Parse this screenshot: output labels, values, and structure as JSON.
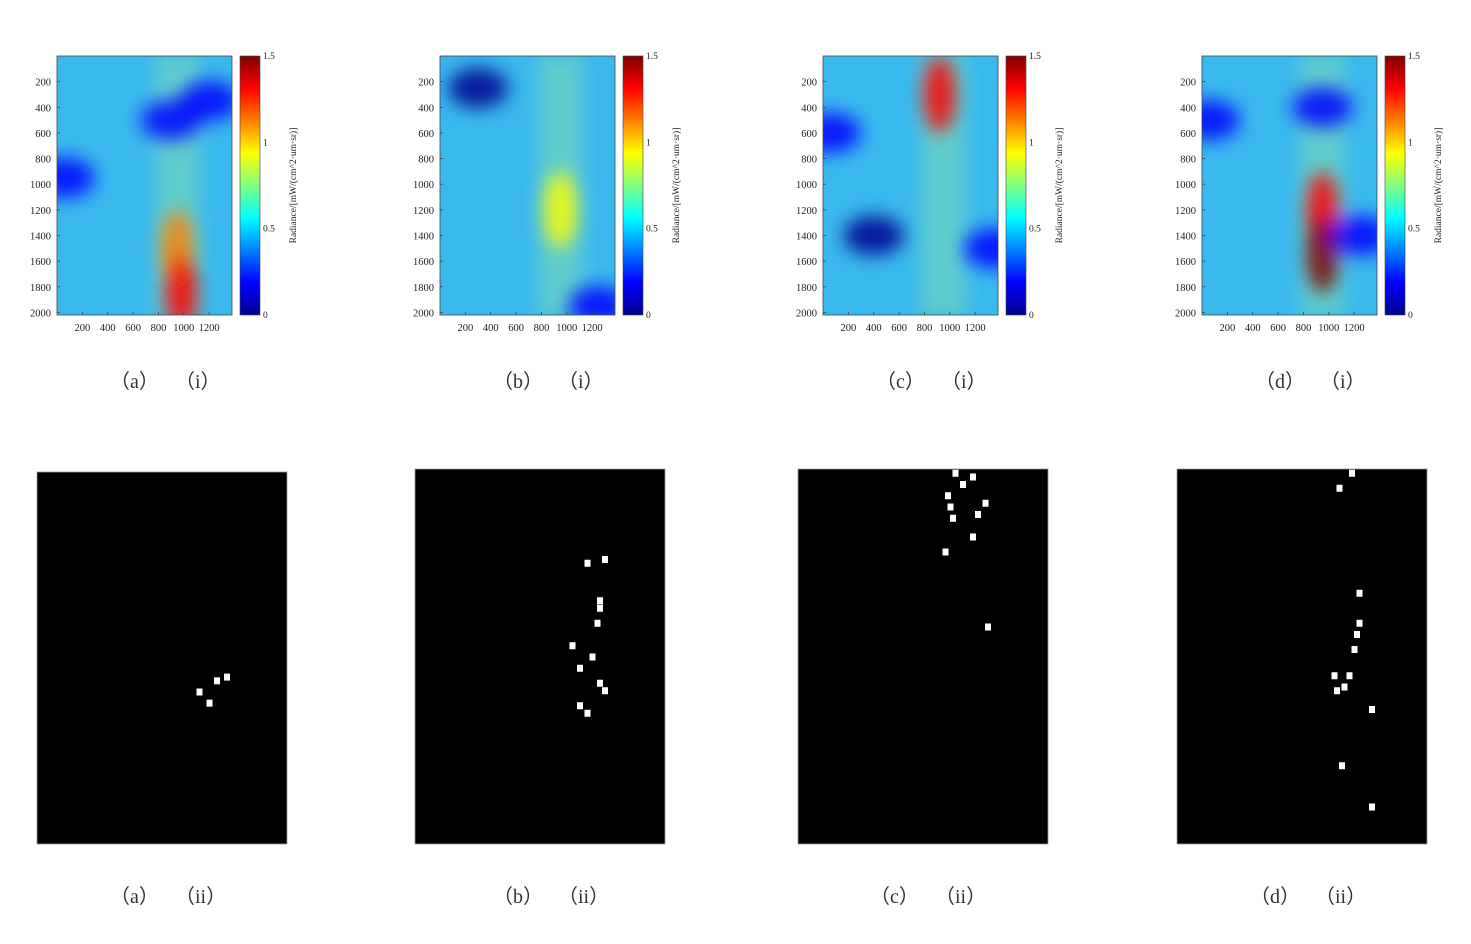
{
  "colormap": [
    "#00008f",
    "#0000ff",
    "#0080ff",
    "#00ffff",
    "#80ff80",
    "#ffff00",
    "#ff8000",
    "#ff0000",
    "#800000"
  ],
  "mask_colors": {
    "background": "#000000",
    "detection": "#ffffff"
  },
  "panels": [
    {
      "caption_letter": "（a）",
      "caption_index": "（i）"
    },
    {
      "caption_letter": "（b）",
      "caption_index": "（i）"
    },
    {
      "caption_letter": "（c）",
      "caption_index": "（i）"
    },
    {
      "caption_letter": "（d）",
      "caption_index": "（i）"
    },
    {
      "caption_letter": "（a）",
      "caption_index": "（ii）"
    },
    {
      "caption_letter": "（b）",
      "caption_index": "（ii）"
    },
    {
      "caption_letter": "（c）",
      "caption_index": "（ii）"
    },
    {
      "caption_letter": "（d）",
      "caption_index": "（ii）"
    }
  ],
  "chart_data": [
    {
      "type": "heatmap",
      "panel": "(a) (i)",
      "x_ticks": [
        "200",
        "400",
        "600",
        "800",
        "1000",
        "1200"
      ],
      "y_ticks": [
        "200",
        "400",
        "600",
        "800",
        "1000",
        "1200",
        "1400",
        "1600",
        "1800",
        "2000"
      ],
      "xlim": [
        0,
        1380
      ],
      "ylim": [
        0,
        2020
      ],
      "colorbar": {
        "title": "Radiance/[mW/(cm^2·um·sr)]",
        "ticks": [
          "0",
          "0.5",
          "1",
          "1.5"
        ],
        "range": [
          0,
          1.5
        ]
      },
      "features": [
        {
          "x": 950,
          "y": 1500,
          "value": 1.05
        },
        {
          "x": 980,
          "y": 1850,
          "value": 1.25
        },
        {
          "x": 900,
          "y": 500,
          "value": 0.1
        },
        {
          "x": 1200,
          "y": 350,
          "value": 0.15
        },
        {
          "x": 60,
          "y": 950,
          "value": 0.2
        }
      ]
    },
    {
      "type": "heatmap",
      "panel": "(b) (i)",
      "x_ticks": [
        "200",
        "400",
        "600",
        "800",
        "1000",
        "1200"
      ],
      "y_ticks": [
        "200",
        "400",
        "600",
        "800",
        "1000",
        "1200",
        "1400",
        "1600",
        "1800",
        "2000"
      ],
      "xlim": [
        0,
        1380
      ],
      "ylim": [
        0,
        2020
      ],
      "colorbar": {
        "title": "Radiance/[mW/(cm^2·um·sr)]",
        "ticks": [
          "0",
          "0.5",
          "1",
          "1.5"
        ],
        "range": [
          0,
          1.5
        ]
      },
      "features": [
        {
          "x": 950,
          "y": 1200,
          "value": 0.85
        },
        {
          "x": 300,
          "y": 250,
          "value": 0.05
        },
        {
          "x": 1250,
          "y": 1950,
          "value": 0.15
        }
      ]
    },
    {
      "type": "heatmap",
      "panel": "(c) (i)",
      "x_ticks": [
        "200",
        "400",
        "600",
        "800",
        "1000",
        "1200"
      ],
      "y_ticks": [
        "200",
        "400",
        "600",
        "800",
        "1000",
        "1200",
        "1400",
        "1600",
        "1800",
        "2000"
      ],
      "xlim": [
        0,
        1380
      ],
      "ylim": [
        0,
        2020
      ],
      "colorbar": {
        "title": "Radiance/[mW/(cm^2·um·sr)]",
        "ticks": [
          "0",
          "0.5",
          "1",
          "1.5"
        ],
        "range": [
          0,
          1.5
        ]
      },
      "features": [
        {
          "x": 920,
          "y": 300,
          "value": 1.35
        },
        {
          "x": 400,
          "y": 1400,
          "value": 0.05
        },
        {
          "x": 60,
          "y": 600,
          "value": 0.1
        },
        {
          "x": 1350,
          "y": 1500,
          "value": 0.1
        }
      ]
    },
    {
      "type": "heatmap",
      "panel": "(d) (i)",
      "x_ticks": [
        "200",
        "400",
        "600",
        "800",
        "1000",
        "1200"
      ],
      "y_ticks": [
        "200",
        "400",
        "600",
        "800",
        "1000",
        "1200",
        "1400",
        "1600",
        "1800",
        "2000"
      ],
      "xlim": [
        0,
        1380
      ],
      "ylim": [
        0,
        2020
      ],
      "colorbar": {
        "title": "Radiance/[mW/(cm^2·um·sr)]",
        "ticks": [
          "0",
          "0.5",
          "1",
          "1.5"
        ],
        "range": [
          0,
          1.5
        ]
      },
      "features": [
        {
          "x": 950,
          "y": 1200,
          "value": 1.3
        },
        {
          "x": 950,
          "y": 1550,
          "value": 1.45
        },
        {
          "x": 950,
          "y": 400,
          "value": 0.2
        },
        {
          "x": 60,
          "y": 500,
          "value": 0.1
        },
        {
          "x": 1250,
          "y": 1400,
          "value": 0.1
        }
      ]
    },
    {
      "type": "scatter",
      "panel": "(a) (ii)",
      "description_of_marks": "binary detection mask",
      "xlim": [
        0,
        1
      ],
      "ylim": [
        0,
        1
      ],
      "points": [
        [
          0.72,
          0.56
        ],
        [
          0.76,
          0.55
        ],
        [
          0.65,
          0.59
        ],
        [
          0.69,
          0.62
        ]
      ]
    },
    {
      "type": "scatter",
      "panel": "(b) (ii)",
      "description_of_marks": "binary detection mask",
      "xlim": [
        0,
        1
      ],
      "ylim": [
        0,
        1
      ],
      "points": [
        [
          0.69,
          0.25
        ],
        [
          0.76,
          0.24
        ],
        [
          0.74,
          0.35
        ],
        [
          0.74,
          0.37
        ],
        [
          0.73,
          0.41
        ],
        [
          0.63,
          0.47
        ],
        [
          0.71,
          0.5
        ],
        [
          0.66,
          0.53
        ],
        [
          0.74,
          0.57
        ],
        [
          0.76,
          0.59
        ],
        [
          0.66,
          0.63
        ],
        [
          0.69,
          0.65
        ]
      ]
    },
    {
      "type": "scatter",
      "panel": "(c) (ii)",
      "description_of_marks": "binary detection mask",
      "xlim": [
        0,
        1
      ],
      "ylim": [
        0,
        1
      ],
      "points": [
        [
          0.63,
          0.01
        ],
        [
          0.7,
          0.02
        ],
        [
          0.66,
          0.04
        ],
        [
          0.6,
          0.07
        ],
        [
          0.61,
          0.1
        ],
        [
          0.62,
          0.13
        ],
        [
          0.75,
          0.09
        ],
        [
          0.72,
          0.12
        ],
        [
          0.7,
          0.18
        ],
        [
          0.59,
          0.22
        ],
        [
          0.76,
          0.42
        ]
      ]
    },
    {
      "type": "scatter",
      "panel": "(d) (ii)",
      "description_of_marks": "binary detection mask",
      "xlim": [
        0,
        1
      ],
      "ylim": [
        0,
        1
      ],
      "points": [
        [
          0.7,
          0.01
        ],
        [
          0.65,
          0.05
        ],
        [
          0.73,
          0.33
        ],
        [
          0.73,
          0.41
        ],
        [
          0.72,
          0.44
        ],
        [
          0.71,
          0.48
        ],
        [
          0.63,
          0.55
        ],
        [
          0.69,
          0.55
        ],
        [
          0.64,
          0.59
        ],
        [
          0.67,
          0.58
        ],
        [
          0.78,
          0.64
        ],
        [
          0.66,
          0.79
        ],
        [
          0.78,
          0.9
        ]
      ]
    }
  ]
}
